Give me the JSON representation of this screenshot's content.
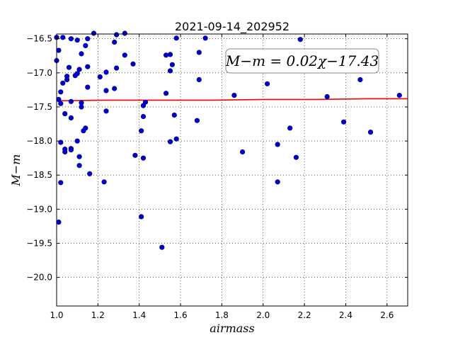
{
  "chart_data": {
    "type": "scatter",
    "title": "2021-09-14_202952",
    "xlabel": "airmass",
    "ylabel": "M−m",
    "xlim": [
      1.0,
      2.7
    ],
    "ylim": [
      -16.43,
      -20.42
    ],
    "y_inverted": true,
    "grid": true,
    "x_ticks": [
      1.0,
      1.2,
      1.4,
      1.6,
      1.8,
      2.0,
      2.2,
      2.4,
      2.6
    ],
    "x_tick_labels": [
      "1.0",
      "1.2",
      "1.4",
      "1.6",
      "1.8",
      "2.0",
      "2.2",
      "2.4",
      "2.6"
    ],
    "y_ticks": [
      -16.5,
      -17.0,
      -17.5,
      -18.0,
      -18.5,
      -19.0,
      -19.5,
      -20.0
    ],
    "y_tick_labels": [
      "−16.5",
      "−17.0",
      "−17.5",
      "−18.0",
      "−18.5",
      "−19.0",
      "−19.5",
      "−20.0"
    ],
    "annotation": "M−m = 0.02χ−17.43",
    "annotation_placement": "top-right",
    "colors": {
      "points": "#0000cc",
      "fit_line": "#ff0000"
    },
    "fit_line": {
      "x": [
        1.0,
        1.25,
        1.5,
        1.75,
        2.0,
        2.25,
        2.5,
        2.7
      ],
      "y": [
        -17.41,
        -17.4,
        -17.4,
        -17.4,
        -17.39,
        -17.39,
        -17.38,
        -17.38
      ]
    },
    "points": [
      {
        "x": 1.0,
        "y": -16.48
      },
      {
        "x": 1.03,
        "y": -16.48
      },
      {
        "x": 1.01,
        "y": -16.67
      },
      {
        "x": 1.0,
        "y": -16.82
      },
      {
        "x": 1.07,
        "y": -16.5
      },
      {
        "x": 1.06,
        "y": -16.92
      },
      {
        "x": 1.05,
        "y": -17.05
      },
      {
        "x": 1.05,
        "y": -17.1
      },
      {
        "x": 1.03,
        "y": -17.15
      },
      {
        "x": 1.02,
        "y": -17.28
      },
      {
        "x": 1.01,
        "y": -17.39
      },
      {
        "x": 1.02,
        "y": -17.45
      },
      {
        "x": 1.04,
        "y": -17.6
      },
      {
        "x": 1.07,
        "y": -17.42
      },
      {
        "x": 1.07,
        "y": -17.66
      },
      {
        "x": 1.09,
        "y": -17.04
      },
      {
        "x": 1.1,
        "y": -17.01
      },
      {
        "x": 1.11,
        "y": -16.95
      },
      {
        "x": 1.1,
        "y": -16.52
      },
      {
        "x": 1.12,
        "y": -16.72
      },
      {
        "x": 1.14,
        "y": -16.6
      },
      {
        "x": 1.15,
        "y": -16.5
      },
      {
        "x": 1.18,
        "y": -16.42
      },
      {
        "x": 1.15,
        "y": -16.91
      },
      {
        "x": 1.15,
        "y": -17.21
      },
      {
        "x": 1.12,
        "y": -17.5
      },
      {
        "x": 1.12,
        "y": -17.44
      },
      {
        "x": 1.13,
        "y": -17.85
      },
      {
        "x": 1.14,
        "y": -17.81
      },
      {
        "x": 1.1,
        "y": -18.0
      },
      {
        "x": 1.07,
        "y": -18.11
      },
      {
        "x": 1.07,
        "y": -18.13
      },
      {
        "x": 1.04,
        "y": -18.12
      },
      {
        "x": 1.04,
        "y": -18.16
      },
      {
        "x": 1.02,
        "y": -18.02
      },
      {
        "x": 1.11,
        "y": -18.23
      },
      {
        "x": 1.11,
        "y": -18.36
      },
      {
        "x": 1.16,
        "y": -18.48
      },
      {
        "x": 1.02,
        "y": -18.61
      },
      {
        "x": 1.01,
        "y": -19.19
      },
      {
        "x": 1.21,
        "y": -17.06
      },
      {
        "x": 1.24,
        "y": -16.99
      },
      {
        "x": 1.24,
        "y": -17.26
      },
      {
        "x": 1.24,
        "y": -17.56
      },
      {
        "x": 1.28,
        "y": -17.23
      },
      {
        "x": 1.29,
        "y": -16.93
      },
      {
        "x": 1.28,
        "y": -16.55
      },
      {
        "x": 1.29,
        "y": -16.44
      },
      {
        "x": 1.33,
        "y": -16.42
      },
      {
        "x": 1.33,
        "y": -16.74
      },
      {
        "x": 1.37,
        "y": -16.87
      },
      {
        "x": 1.23,
        "y": -18.6
      },
      {
        "x": 1.38,
        "y": -18.21
      },
      {
        "x": 1.41,
        "y": -17.85
      },
      {
        "x": 1.42,
        "y": -17.48
      },
      {
        "x": 1.43,
        "y": -17.43
      },
      {
        "x": 1.42,
        "y": -17.64
      },
      {
        "x": 1.42,
        "y": -18.25
      },
      {
        "x": 1.41,
        "y": -19.11
      },
      {
        "x": 1.51,
        "y": -19.56
      },
      {
        "x": 1.53,
        "y": -17.3
      },
      {
        "x": 1.53,
        "y": -16.74
      },
      {
        "x": 1.55,
        "y": -16.73
      },
      {
        "x": 1.55,
        "y": -16.97
      },
      {
        "x": 1.56,
        "y": -16.88
      },
      {
        "x": 1.58,
        "y": -16.49
      },
      {
        "x": 1.57,
        "y": -17.62
      },
      {
        "x": 1.55,
        "y": -18.01
      },
      {
        "x": 1.58,
        "y": -17.97
      },
      {
        "x": 1.68,
        "y": -17.7
      },
      {
        "x": 1.69,
        "y": -16.7
      },
      {
        "x": 1.69,
        "y": -17.1
      },
      {
        "x": 1.72,
        "y": -16.49
      },
      {
        "x": 1.86,
        "y": -17.33
      },
      {
        "x": 1.9,
        "y": -18.16
      },
      {
        "x": 2.02,
        "y": -17.16
      },
      {
        "x": 2.07,
        "y": -18.05
      },
      {
        "x": 2.07,
        "y": -18.6
      },
      {
        "x": 2.13,
        "y": -17.81
      },
      {
        "x": 2.16,
        "y": -18.24
      },
      {
        "x": 2.18,
        "y": -16.51
      },
      {
        "x": 2.31,
        "y": -17.35
      },
      {
        "x": 2.39,
        "y": -17.72
      },
      {
        "x": 2.47,
        "y": -17.1
      },
      {
        "x": 2.52,
        "y": -17.87
      },
      {
        "x": 2.66,
        "y": -17.33
      }
    ]
  }
}
